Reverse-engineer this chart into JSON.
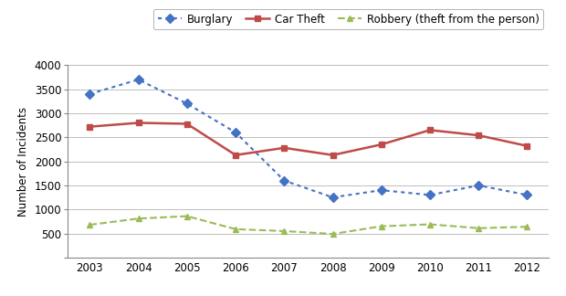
{
  "years": [
    2003,
    2004,
    2005,
    2006,
    2007,
    2008,
    2009,
    2010,
    2011,
    2012
  ],
  "burglary": [
    3400,
    3700,
    3200,
    2600,
    1600,
    1250,
    1400,
    1300,
    1500,
    1300
  ],
  "car_theft": [
    2720,
    2800,
    2780,
    2130,
    2280,
    2130,
    2350,
    2650,
    2540,
    2320
  ],
  "robbery": [
    680,
    810,
    860,
    590,
    550,
    490,
    650,
    690,
    610,
    640
  ],
  "burglary_color": "#4472C4",
  "car_theft_color": "#BE4B48",
  "robbery_color": "#9BBB59",
  "ylabel": "Number of Incidents",
  "ylim": [
    0,
    4000
  ],
  "yticks": [
    0,
    500,
    1000,
    1500,
    2000,
    2500,
    3000,
    3500,
    4000
  ],
  "legend_labels": [
    "Burglary",
    "Car Theft",
    "Robbery (theft from the person)"
  ],
  "background_color": "#ffffff",
  "grid_color": "#BFBFBF"
}
